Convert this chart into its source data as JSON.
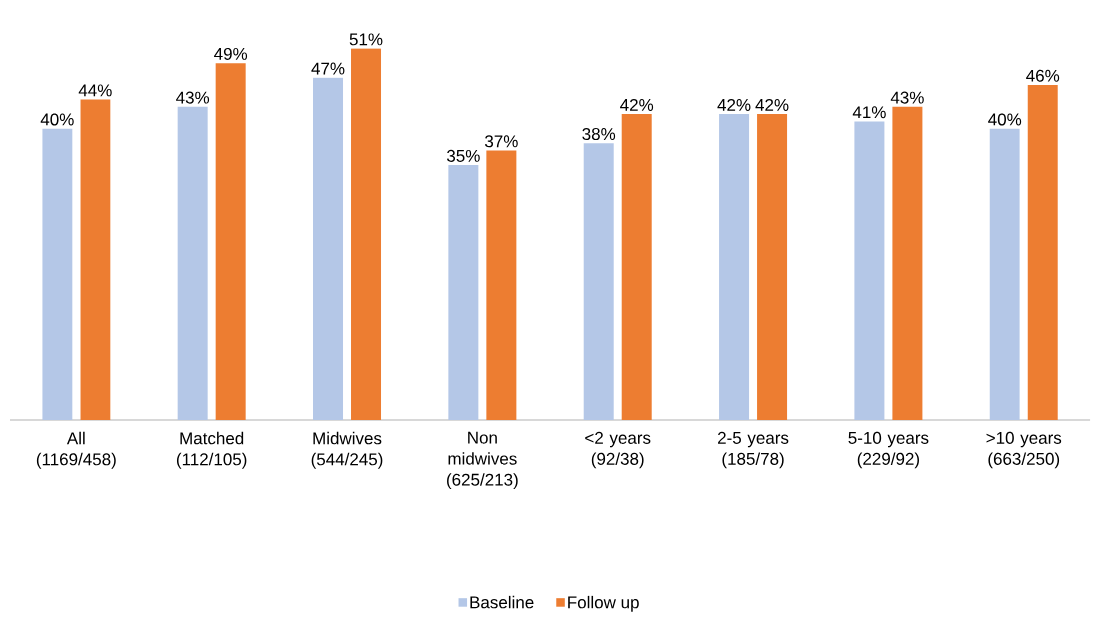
{
  "chart_data": {
    "type": "bar",
    "categories": [
      "All (1169/458)",
      "Matched (112/105)",
      "Midwives (544/245)",
      "Non midwives (625/213)",
      "<2 years (92/38)",
      "2-5 years (185/78)",
      "5-10 years (229/92)",
      ">10 years (663/250)"
    ],
    "series": [
      {
        "name": "Baseline",
        "color": "#b4c7e7",
        "values": [
          40,
          43,
          47,
          35,
          38,
          42,
          41,
          40
        ],
        "value_labels": [
          "40%",
          "43%",
          "47%",
          "35%",
          "38%",
          "42%",
          "41%",
          "40%"
        ]
      },
      {
        "name": "Follow up",
        "color": "#ed7d31",
        "values": [
          44,
          49,
          51,
          37,
          42,
          42,
          43,
          46
        ],
        "value_labels": [
          "44%",
          "49%",
          "51%",
          "37%",
          "42%",
          "42%",
          "43%",
          "46%"
        ]
      }
    ],
    "legend": "bottom"
  }
}
